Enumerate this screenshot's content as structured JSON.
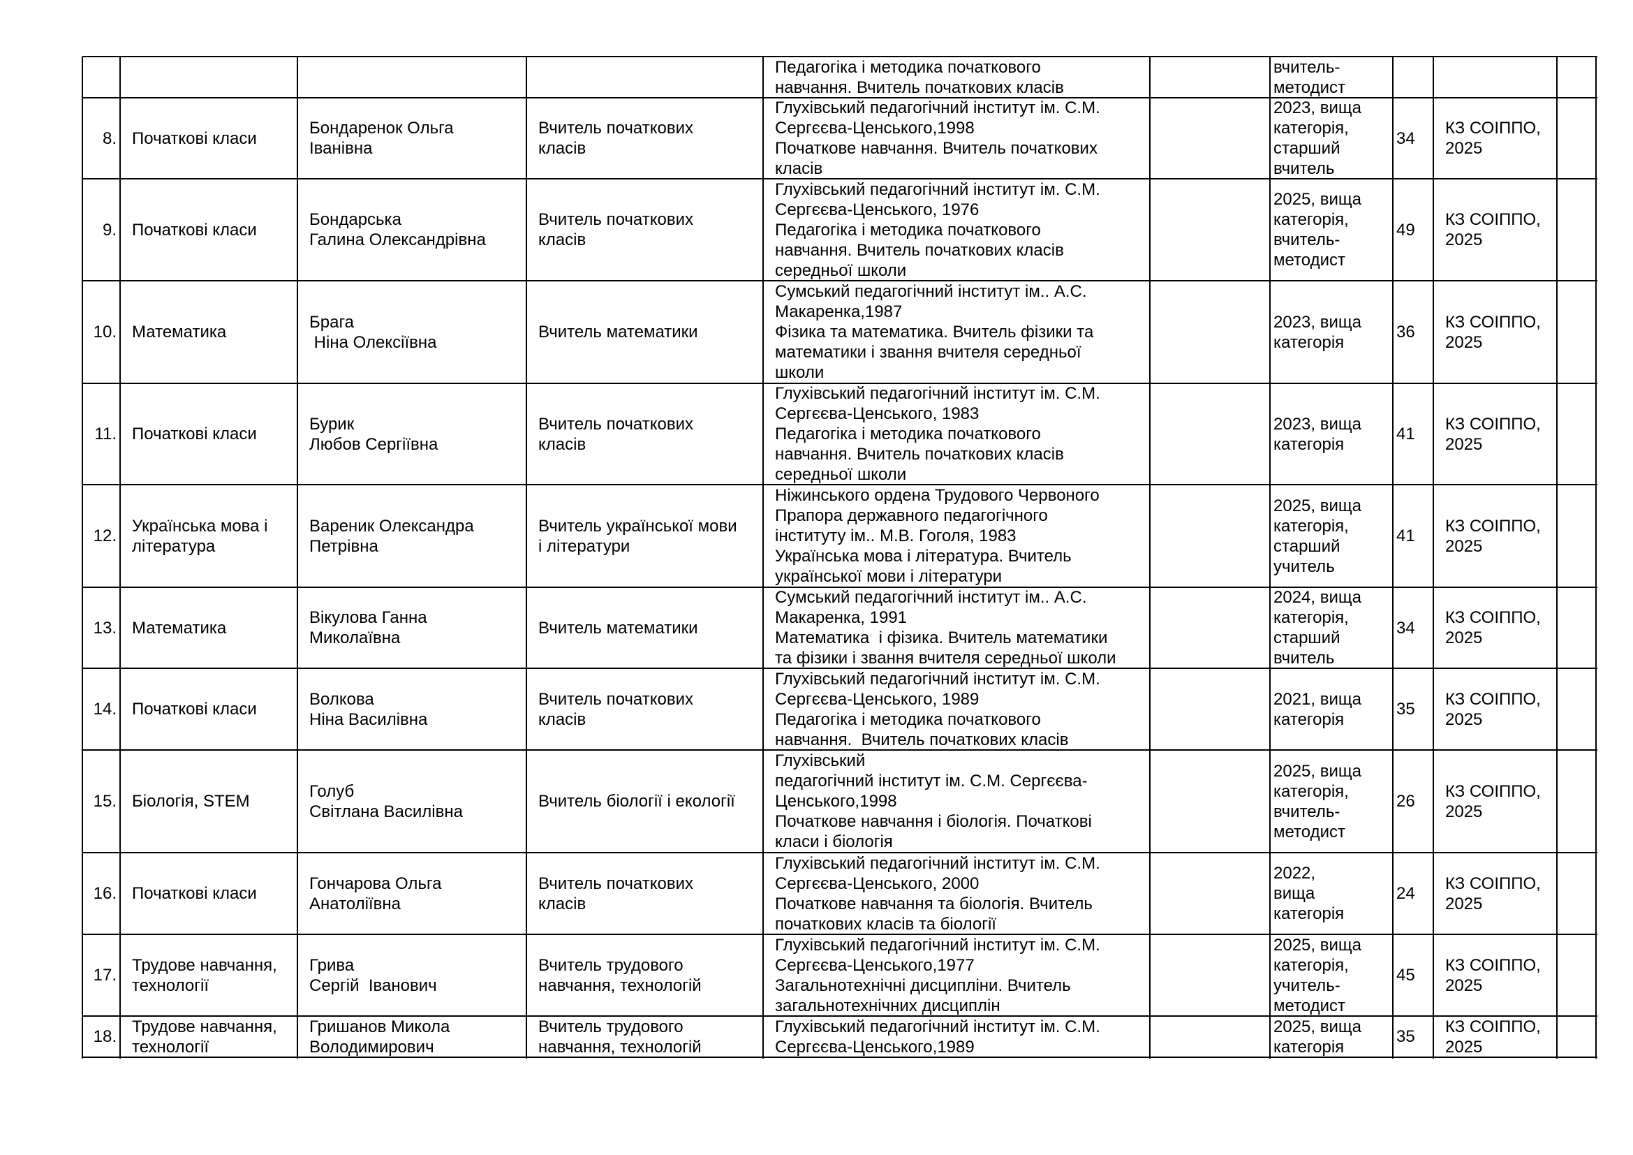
{
  "table": {
    "rows": [
      {
        "education": [
          "Педагогіка і методика початкового",
          "навчання. Вчитель початкових класів"
        ],
        "category": [
          "вчитель-",
          "методист"
        ]
      },
      {
        "num": "8.",
        "subject": [
          "Початкові класи"
        ],
        "name": [
          "Бондаренок Ольга",
          "Іванівна"
        ],
        "position": [
          "Вчитель початкових",
          "класів"
        ],
        "education": [
          "Глухівський педагогічний інститут ім. С.М.",
          "Сергєєва-Ценського,1998",
          "Початкове навчання. Вчитель початкових",
          "класів"
        ],
        "category": [
          "2023, вища",
          "категорія,",
          "старший",
          "вчитель"
        ],
        "experience": "34",
        "course": [
          "КЗ СОІППО,",
          "2025"
        ]
      },
      {
        "num": "9.",
        "subject": [
          "Початкові класи"
        ],
        "name": [
          "Бондарська",
          "Галина Олександрівна"
        ],
        "position": [
          "Вчитель початкових",
          "класів"
        ],
        "education": [
          "Глухівський педагогічний інститут ім. С.М.",
          "Сергєєва-Ценського, 1976",
          "Педагогіка і методика початкового",
          "навчання. Вчитель початкових класів",
          "середньої школи"
        ],
        "category": [
          "2025, вища",
          "категорія,",
          "вчитель-",
          "методист"
        ],
        "experience": "49",
        "course": [
          "КЗ СОІППО,",
          "2025"
        ]
      },
      {
        "num": "10.",
        "subject": [
          "Математика"
        ],
        "name": [
          "Брага",
          " Ніна Олексіївна"
        ],
        "position": [
          "Вчитель математики"
        ],
        "education": [
          "Сумський педагогічний інститут ім.. А.С.",
          "Макаренка,1987",
          "Фізика та математика. Вчитель фізики та",
          "математики і звання вчителя середньої",
          "школи"
        ],
        "category": [
          "2023, вища",
          "категорія"
        ],
        "experience": "36",
        "course": [
          "КЗ СОІППО,",
          "2025"
        ]
      },
      {
        "num": "11.",
        "subject": [
          "Початкові класи"
        ],
        "name": [
          "Бурик",
          "Любов Сергіївна"
        ],
        "position": [
          "Вчитель початкових",
          "класів"
        ],
        "education": [
          "Глухівський педагогічний інститут ім. С.М.",
          "Сергєєва-Ценського, 1983",
          "Педагогіка і методика початкового",
          "навчання. Вчитель початкових класів",
          "середньої школи"
        ],
        "category": [
          "2023, вища",
          "категорія"
        ],
        "experience": "41",
        "course": [
          "КЗ СОІППО,",
          "2025"
        ]
      },
      {
        "num": "12.",
        "subject": [
          "Українська мова і",
          "література"
        ],
        "name": [
          "Вареник Олександра",
          "Петрівна"
        ],
        "position": [
          "Вчитель української мови",
          "і літератури"
        ],
        "education": [
          "Ніжинського ордена Трудового Червоного",
          "Прапора державного педагогічного",
          "інституту ім.. М.В. Гоголя, 1983",
          "Українська мова і література. Вчитель",
          "української мови і літератури"
        ],
        "category": [
          "2025, вища",
          "категорія,",
          "старший",
          "учитель"
        ],
        "experience": "41",
        "course": [
          "КЗ СОІППО,",
          "2025"
        ]
      },
      {
        "num": "13.",
        "subject": [
          "Математика"
        ],
        "name": [
          "Вікулова Ганна",
          "Миколаївна"
        ],
        "position": [
          "Вчитель математики"
        ],
        "education": [
          "Сумський педагогічний інститут ім.. А.С.",
          "Макаренка, 1991",
          "Математика  і фізика. Вчитель математики",
          "та фізики і звання вчителя середньої школи"
        ],
        "category": [
          "2024, вища",
          "категорія,",
          "старший",
          "вчитель"
        ],
        "experience": "34",
        "course": [
          "КЗ СОІППО,",
          "2025"
        ]
      },
      {
        "num": "14.",
        "subject": [
          "Початкові класи"
        ],
        "name": [
          "Волкова",
          "Ніна Василівна"
        ],
        "position": [
          "Вчитель початкових",
          "класів"
        ],
        "education": [
          "Глухівський педагогічний інститут ім. С.М.",
          "Сергєєва-Ценського, 1989",
          "Педагогіка і методика початкового",
          "навчання.  Вчитель початкових класів"
        ],
        "category": [
          "2021, вища",
          "категорія"
        ],
        "experience": "35",
        "course": [
          "КЗ СОІППО,",
          "2025"
        ]
      },
      {
        "num": "15.",
        "subject": [
          "Біологія, STEM"
        ],
        "name": [
          "Голуб",
          "Світлана Василівна"
        ],
        "position": [
          "Вчитель біології і екології"
        ],
        "education": [
          "Глухівський",
          "педагогічний інститут ім. С.М. Сергєєва-",
          "Ценського,1998",
          "Початкове навчання і біологія. Початкові",
          "класи і біологія"
        ],
        "category": [
          "2025, вища",
          "категорія,",
          "вчитель-",
          "методист"
        ],
        "experience": "26",
        "course": [
          "КЗ СОІППО,",
          "2025"
        ]
      },
      {
        "num": "16.",
        "subject": [
          "Початкові класи"
        ],
        "name": [
          "Гончарова Ольга",
          "Анатоліївна"
        ],
        "position": [
          "Вчитель початкових",
          "класів"
        ],
        "education": [
          "Глухівський педагогічний інститут ім. С.М.",
          "Сергєєва-Ценського, 2000",
          "Початкове навчання та біологія. Вчитель",
          "початкових класів та біології"
        ],
        "category": [
          "2022,",
          "вища",
          "категорія"
        ],
        "experience": "24",
        "course": [
          "КЗ СОІППО,",
          "2025"
        ]
      },
      {
        "num": "17.",
        "subject": [
          "Трудове навчання,",
          "технології"
        ],
        "name": [
          "Грива",
          "Сергій  Іванович"
        ],
        "position": [
          "Вчитель трудового",
          "навчання, технологій"
        ],
        "education": [
          "Глухівський педагогічний інститут ім. С.М.",
          "Сергєєва-Ценського,1977",
          "Загальнотехнічні дисципліни. Вчитель",
          "загальнотехнічних дисциплін"
        ],
        "category": [
          "2025, вища",
          "категорія,",
          "учитель-",
          "методист"
        ],
        "experience": "45",
        "course": [
          "КЗ СОІППО,",
          "2025"
        ]
      },
      {
        "num": "18.",
        "subject": [
          "Трудове навчання,",
          "технології"
        ],
        "name": [
          "Гришанов Микола",
          "Володимирович"
        ],
        "position": [
          "Вчитель трудового",
          "навчання, технологій"
        ],
        "education": [
          "Глухівський педагогічний інститут ім. С.М.",
          "Сергєєва-Ценського,1989"
        ],
        "category": [
          "2025, вища",
          "категорія"
        ],
        "experience": "35",
        "course": [
          "КЗ СОІППО,",
          "2025"
        ]
      }
    ]
  }
}
